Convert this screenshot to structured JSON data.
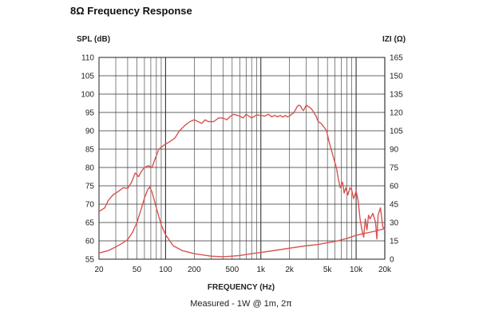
{
  "title": "8Ω Frequency Response",
  "chart_data": {
    "type": "line",
    "xlabel": "FREQUENCY (Hz)",
    "ylabel": "SPL (dB)",
    "y2label": "IZI (Ω)",
    "caption": "Measured - 1W @ 1m, 2π",
    "x_scale": "log",
    "xlim": [
      20,
      20000
    ],
    "ylim": [
      55,
      110
    ],
    "y2lim": [
      0,
      165
    ],
    "x_ticks": [
      20,
      50,
      100,
      200,
      500,
      1000,
      2000,
      5000,
      10000,
      20000
    ],
    "x_tick_labels": [
      "20",
      "50",
      "100",
      "200",
      "500",
      "1k",
      "2k",
      "5k",
      "10k",
      "20k"
    ],
    "y_ticks": [
      110,
      105,
      100,
      95,
      90,
      85,
      80,
      75,
      70,
      65,
      60,
      55
    ],
    "y2_ticks": [
      165,
      150,
      135,
      120,
      105,
      90,
      75,
      60,
      45,
      30,
      15,
      0
    ],
    "grid": true,
    "line_color": "#d9534f",
    "series": [
      {
        "axis": "left",
        "points": [
          [
            20,
            68
          ],
          [
            23,
            69
          ],
          [
            25,
            71
          ],
          [
            28,
            72.5
          ],
          [
            32,
            73.5
          ],
          [
            36,
            74.5
          ],
          [
            40,
            74.3
          ],
          [
            44,
            76
          ],
          [
            48,
            78.5
          ],
          [
            52,
            77.5
          ],
          [
            56,
            79
          ],
          [
            60,
            80
          ],
          [
            66,
            80.5
          ],
          [
            72,
            80
          ],
          [
            78,
            82.5
          ],
          [
            85,
            85
          ],
          [
            95,
            86
          ],
          [
            110,
            87
          ],
          [
            125,
            88
          ],
          [
            140,
            90
          ],
          [
            160,
            91.5
          ],
          [
            180,
            92.5
          ],
          [
            200,
            93
          ],
          [
            220,
            92.5
          ],
          [
            240,
            92
          ],
          [
            260,
            93
          ],
          [
            280,
            92.5
          ],
          [
            320,
            92.5
          ],
          [
            360,
            93.5
          ],
          [
            400,
            93.5
          ],
          [
            440,
            93
          ],
          [
            480,
            94
          ],
          [
            520,
            94.5
          ],
          [
            600,
            94
          ],
          [
            650,
            93.5
          ],
          [
            700,
            94.5
          ],
          [
            800,
            93.5
          ],
          [
            900,
            94.3
          ],
          [
            1000,
            94.2
          ],
          [
            1100,
            94
          ],
          [
            1200,
            94.5
          ],
          [
            1300,
            93.8
          ],
          [
            1400,
            94.2
          ],
          [
            1500,
            93.8
          ],
          [
            1600,
            94.2
          ],
          [
            1700,
            93.7
          ],
          [
            1800,
            94.2
          ],
          [
            1900,
            93.8
          ],
          [
            2000,
            94
          ],
          [
            2100,
            94.5
          ],
          [
            2200,
            94.8
          ],
          [
            2400,
            96.5
          ],
          [
            2500,
            97
          ],
          [
            2600,
            96.8
          ],
          [
            2700,
            96
          ],
          [
            2800,
            95.5
          ],
          [
            3000,
            97
          ],
          [
            3200,
            96.5
          ],
          [
            3400,
            96
          ],
          [
            3600,
            95
          ],
          [
            3800,
            94
          ],
          [
            4000,
            92.5
          ],
          [
            4300,
            92
          ],
          [
            4600,
            91
          ],
          [
            4900,
            90
          ],
          [
            5200,
            87
          ],
          [
            5600,
            84
          ],
          [
            6200,
            80
          ],
          [
            6500,
            77
          ],
          [
            6800,
            74.5
          ],
          [
            7200,
            76
          ],
          [
            7500,
            73
          ],
          [
            7800,
            74.5
          ],
          [
            8200,
            72.5
          ],
          [
            8600,
            74.5
          ],
          [
            9000,
            73.8
          ],
          [
            9400,
            71.5
          ],
          [
            10000,
            73.5
          ],
          [
            10500,
            71
          ],
          [
            11000,
            66
          ],
          [
            11500,
            63
          ],
          [
            12000,
            61
          ],
          [
            12500,
            66
          ],
          [
            13000,
            63
          ],
          [
            13500,
            67
          ],
          [
            14000,
            66
          ],
          [
            15000,
            67.5
          ],
          [
            16000,
            65
          ],
          [
            16500,
            60.5
          ],
          [
            17000,
            67
          ],
          [
            18000,
            69
          ],
          [
            19000,
            64
          ],
          [
            20000,
            63
          ]
        ]
      },
      {
        "axis": "right",
        "points": [
          [
            20,
            5
          ],
          [
            25,
            7
          ],
          [
            30,
            10
          ],
          [
            35,
            13
          ],
          [
            40,
            16
          ],
          [
            45,
            22
          ],
          [
            50,
            30
          ],
          [
            55,
            40
          ],
          [
            60,
            50
          ],
          [
            65,
            57
          ],
          [
            68,
            59
          ],
          [
            72,
            55
          ],
          [
            80,
            42
          ],
          [
            90,
            28
          ],
          [
            100,
            20
          ],
          [
            120,
            11
          ],
          [
            150,
            7
          ],
          [
            200,
            4.5
          ],
          [
            300,
            2.5
          ],
          [
            400,
            2
          ],
          [
            500,
            2.5
          ],
          [
            600,
            3
          ],
          [
            800,
            4.5
          ],
          [
            1000,
            5.5
          ],
          [
            1500,
            7.5
          ],
          [
            2000,
            9
          ],
          [
            3000,
            11
          ],
          [
            4000,
            12
          ],
          [
            5000,
            13.5
          ],
          [
            6000,
            14.5
          ],
          [
            8000,
            17
          ],
          [
            10000,
            19.5
          ],
          [
            12000,
            21
          ],
          [
            15000,
            22.5
          ],
          [
            20000,
            25
          ]
        ]
      }
    ]
  }
}
